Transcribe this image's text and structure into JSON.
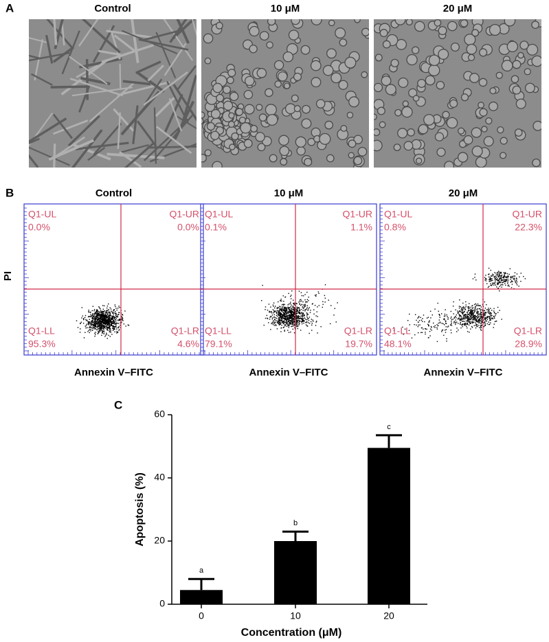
{
  "panel_a": {
    "label": "A",
    "images": [
      {
        "title": "Control"
      },
      {
        "title": "10 μM"
      },
      {
        "title": "20 μM"
      }
    ]
  },
  "panel_b": {
    "label": "B",
    "y_label": "PI",
    "plots": [
      {
        "title": "Control",
        "x_label": "Annexin V–FITC",
        "quadrants": [
          {
            "name": "Q1-UL",
            "value": 0,
            "label": "0.0%"
          },
          {
            "name": "Q1-UR",
            "value": 0,
            "label": "0.0%"
          },
          {
            "name": "Q1-LL",
            "value": 95.3,
            "label": "95.3%"
          },
          {
            "name": "Q1-LR",
            "value": 4.6,
            "label": "4.6%"
          }
        ]
      },
      {
        "title": "10 μM",
        "x_label": "Annexin V–FITC",
        "quadrants": [
          {
            "name": "Q1-UL",
            "value": 0.1,
            "label": "0.1%"
          },
          {
            "name": "Q1-UR",
            "value": 1.1,
            "label": "1.1%"
          },
          {
            "name": "Q1-LL",
            "value": 79.1,
            "label": "79.1%"
          },
          {
            "name": "Q1-LR",
            "value": 19.7,
            "label": "19.7%"
          }
        ]
      },
      {
        "title": "20 μM",
        "x_label": "Annexin V–FITC",
        "quadrants": [
          {
            "name": "Q1-UL",
            "value": 0.8,
            "label": "0.8%"
          },
          {
            "name": "Q1-UR",
            "value": 22.3,
            "label": "22.3%"
          },
          {
            "name": "Q1-LL",
            "value": 48.1,
            "label": "48.1%"
          },
          {
            "name": "Q1-LR",
            "value": 28.9,
            "label": "28.9%"
          }
        ]
      }
    ]
  },
  "chart_data": {
    "type": "bar",
    "label": "C",
    "x_label": "Concentration (μM)",
    "y_label": "Apoptosis (%)",
    "categories": [
      "0",
      "10",
      "20"
    ],
    "values": [
      4.5,
      20,
      49.5
    ],
    "errors": [
      3.5,
      3,
      4
    ],
    "annotations": [
      "a",
      "b",
      "c"
    ],
    "color": "#000000",
    "ylim": [
      0,
      60
    ],
    "yticks": [
      0,
      20,
      40,
      60
    ]
  }
}
